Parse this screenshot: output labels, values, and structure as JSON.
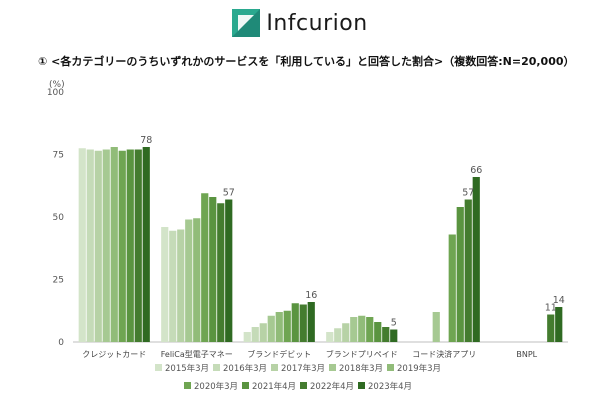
{
  "logo": {
    "text": "Infcurion"
  },
  "title": "① <各カテゴリーのうちいずれかのサービスを「利用している」と回答した割合>（複数回答:N=20,000）",
  "chart_data": {
    "type": "bar",
    "ylabel": "(%)",
    "ylim": [
      0,
      100
    ],
    "yticks": [
      0,
      25,
      50,
      75,
      100
    ],
    "grid": false,
    "legend_placement": "bottom",
    "categories": [
      "クレジットカード",
      "FeliCa型電子マネー",
      "ブランドデビット",
      "ブランドプリペイド",
      "コード決済アプリ",
      "BNPL"
    ],
    "series": [
      {
        "name": "2015年3月",
        "color": "#d3e4c9",
        "values": [
          77.5,
          46,
          4,
          4,
          null,
          null
        ]
      },
      {
        "name": "2016年3月",
        "color": "#c5dbb8",
        "values": [
          77,
          44.5,
          6,
          5.5,
          null,
          null
        ]
      },
      {
        "name": "2017年3月",
        "color": "#b7d2a6",
        "values": [
          76.5,
          45,
          7.5,
          7.5,
          null,
          null
        ]
      },
      {
        "name": "2018年3月",
        "color": "#a6c992",
        "values": [
          77,
          49,
          10.5,
          10,
          12,
          null
        ]
      },
      {
        "name": "2019年3月",
        "color": "#91bc79",
        "values": [
          78,
          49.5,
          12,
          10.5,
          null,
          null
        ]
      },
      {
        "name": "2020年3月",
        "color": "#6fa552",
        "values": [
          76.5,
          59.5,
          12.5,
          10,
          43,
          null
        ]
      },
      {
        "name": "2021年4月",
        "color": "#5a9440",
        "values": [
          77,
          58,
          15.5,
          8,
          54,
          null
        ]
      },
      {
        "name": "2022年4月",
        "color": "#447c2f",
        "values": [
          77,
          55.5,
          15,
          6,
          57,
          11
        ]
      },
      {
        "name": "2023年4月",
        "color": "#2f6a22",
        "values": [
          78,
          57,
          16,
          5,
          66,
          14
        ]
      }
    ],
    "data_labels": [
      {
        "category": "クレジットカード",
        "series": "2023年4月",
        "text": "78"
      },
      {
        "category": "FeliCa型電子マネー",
        "series": "2023年4月",
        "text": "57"
      },
      {
        "category": "ブランドデビット",
        "series": "2023年4月",
        "text": "16"
      },
      {
        "category": "ブランドプリペイド",
        "series": "2023年4月",
        "text": "5"
      },
      {
        "category": "コード決済アプリ",
        "series": "2022年4月",
        "text": "57"
      },
      {
        "category": "コード決済アプリ",
        "series": "2023年4月",
        "text": "66"
      },
      {
        "category": "BNPL",
        "series": "2022年4月",
        "text": "11"
      },
      {
        "category": "BNPL",
        "series": "2023年4月",
        "text": "14"
      }
    ]
  },
  "colors": {
    "logo_mark": "#1f8a78",
    "axis": "#bfbfbf"
  }
}
